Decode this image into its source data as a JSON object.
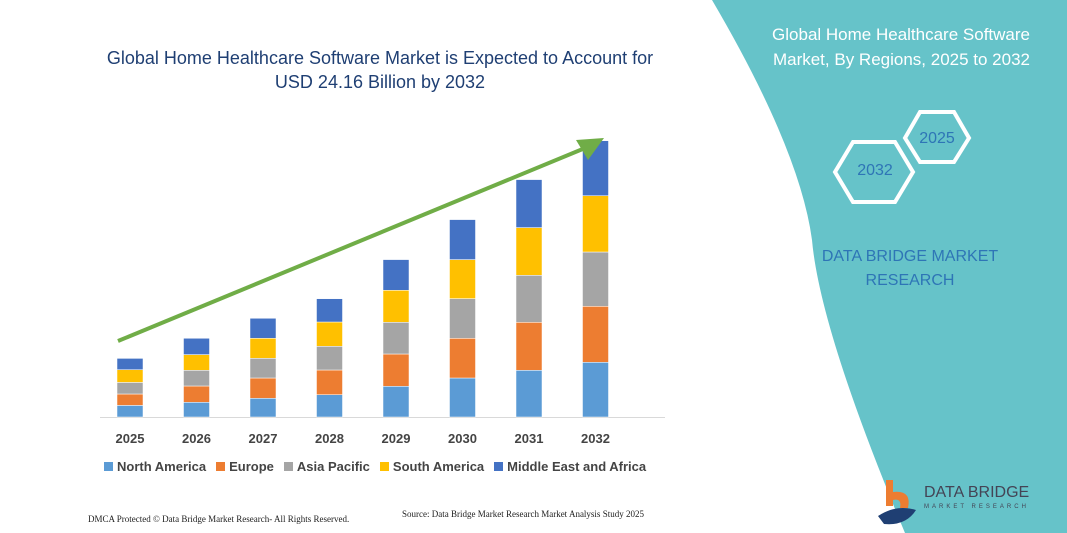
{
  "right_panel": {
    "title": "Global Home Healthcare Software Market, By Regions, 2025 to 2032",
    "hex_start": "2025",
    "hex_end": "2032",
    "brand": "DATA BRIDGE MARKET RESEARCH",
    "logo_text": "DATA BRIDGE",
    "logo_sub": "MARKET RESEARCH",
    "background": "#66c3c9"
  },
  "footer": {
    "dmca": "DMCA Protected © Data Bridge Market Research- All Rights Reserved.",
    "source": "Source: Data Bridge Market Research Market Analysis Study 2025"
  },
  "chart_data": {
    "type": "bar",
    "stacked": true,
    "title": "Global Home Healthcare Software Market is Expected to Account for USD 24.16 Billion by 2032",
    "categories": [
      "2025",
      "2026",
      "2027",
      "2028",
      "2029",
      "2030",
      "2031",
      "2032"
    ],
    "series": [
      {
        "name": "North America",
        "color": "#5b9bd5",
        "values": [
          11.6,
          14.7,
          18.7,
          22.3,
          30.7,
          39,
          46.7,
          54.7
        ]
      },
      {
        "name": "Europe",
        "color": "#ed7d31",
        "values": [
          11.4,
          16.3,
          20.3,
          24.7,
          32.3,
          39.7,
          48,
          56
        ]
      },
      {
        "name": "Asia Pacific",
        "color": "#a5a5a5",
        "values": [
          11.6,
          15.7,
          19.7,
          23.7,
          31.7,
          39.7,
          47,
          54.3
        ]
      },
      {
        "name": "South America",
        "color": "#ffc000",
        "values": [
          12.7,
          15.7,
          20,
          24.3,
          32,
          39,
          47.7,
          56.3
        ]
      },
      {
        "name": "Middle East and Africa",
        "color": "#4472c4",
        "values": [
          11.3,
          16.3,
          20,
          23.3,
          30.7,
          40,
          48,
          55
        ]
      }
    ],
    "trend_arrow_color": "#70ad47",
    "legend": "bottom",
    "grid": false,
    "y_axis_shown": false
  }
}
